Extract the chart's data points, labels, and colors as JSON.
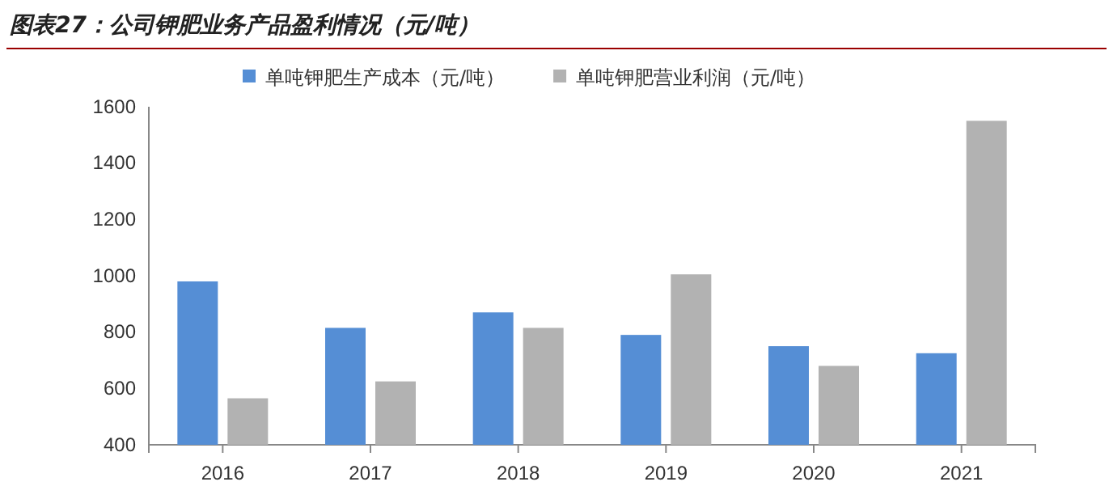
{
  "chart_data": {
    "type": "bar",
    "title": "图表27：公司钾肥业务产品盈利情况（元/吨）",
    "categories": [
      "2016",
      "2017",
      "2018",
      "2019",
      "2020",
      "2021"
    ],
    "series": [
      {
        "name": "单吨钾肥生产成本（元/吨）",
        "color": "#558ed5",
        "values": [
          980,
          815,
          870,
          790,
          750,
          725
        ]
      },
      {
        "name": "单吨钾肥营业利润（元/吨）",
        "color": "#b2b2b2",
        "values": [
          565,
          625,
          815,
          1005,
          680,
          1550
        ]
      }
    ],
    "ylim": [
      400,
      1600
    ],
    "yticks": [
      400,
      600,
      800,
      1000,
      1200,
      1400,
      1600
    ],
    "grid": false,
    "legend": "top"
  }
}
